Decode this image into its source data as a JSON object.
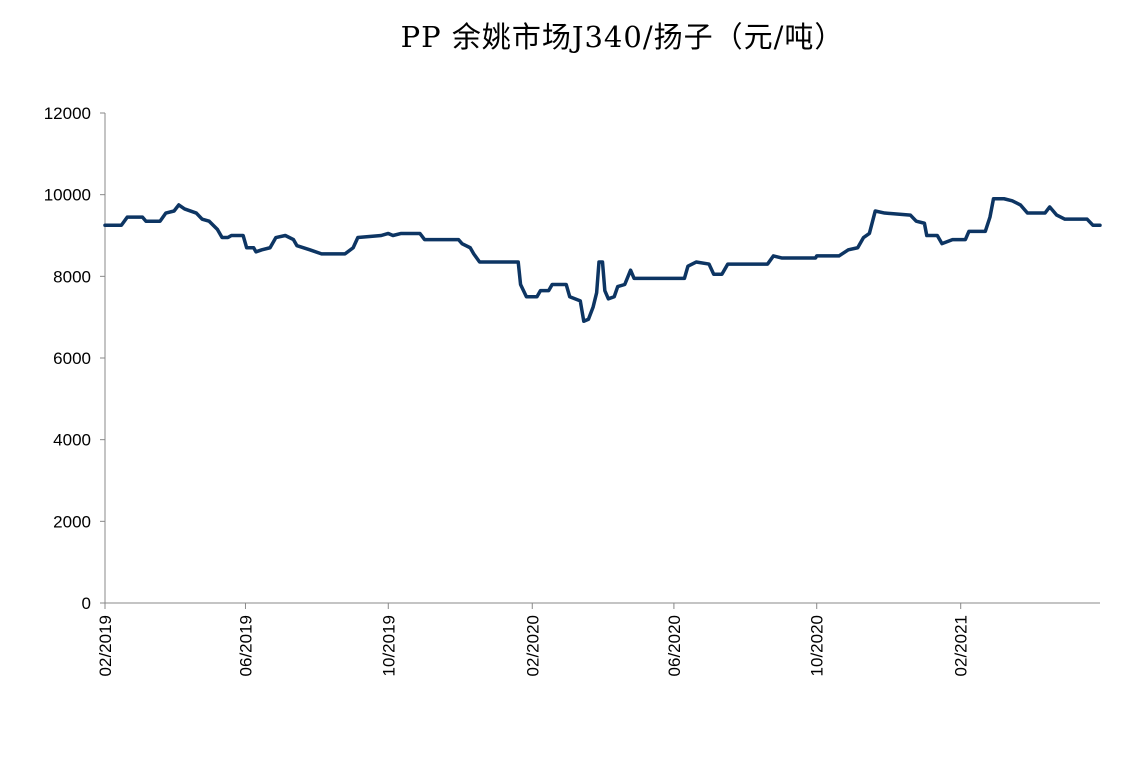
{
  "chart_data": {
    "type": "line",
    "title": "PP 余姚市场J340/扬子（元/吨）",
    "xlabel": "",
    "ylabel": "",
    "ylim": [
      0,
      12000
    ],
    "yticks": [
      "0",
      "2000",
      "4000",
      "6000",
      "8000",
      "10000",
      "12000"
    ],
    "xticks": [
      "02/2019",
      "06/2019",
      "10/2019",
      "02/2020",
      "06/2020",
      "10/2020",
      "02/2021"
    ],
    "x_range": [
      "2019-02-01",
      "2021-05-31"
    ],
    "grid": false,
    "series": [
      {
        "color": "#0d3563",
        "points": [
          [
            "2019-02-01",
            9250
          ],
          [
            "2019-02-15",
            9250
          ],
          [
            "2019-02-20",
            9450
          ],
          [
            "2019-03-05",
            9450
          ],
          [
            "2019-03-08",
            9350
          ],
          [
            "2019-03-20",
            9350
          ],
          [
            "2019-03-25",
            9550
          ],
          [
            "2019-04-01",
            9600
          ],
          [
            "2019-04-05",
            9750
          ],
          [
            "2019-04-10",
            9650
          ],
          [
            "2019-04-20",
            9550
          ],
          [
            "2019-04-25",
            9400
          ],
          [
            "2019-05-01",
            9350
          ],
          [
            "2019-05-08",
            9150
          ],
          [
            "2019-05-12",
            8950
          ],
          [
            "2019-05-17",
            8950
          ],
          [
            "2019-05-20",
            9000
          ],
          [
            "2019-05-30",
            9000
          ],
          [
            "2019-06-02",
            8700
          ],
          [
            "2019-06-08",
            8700
          ],
          [
            "2019-06-10",
            8600
          ],
          [
            "2019-06-15",
            8650
          ],
          [
            "2019-06-22",
            8700
          ],
          [
            "2019-06-27",
            8950
          ],
          [
            "2019-07-05",
            9000
          ],
          [
            "2019-07-12",
            8900
          ],
          [
            "2019-07-15",
            8750
          ],
          [
            "2019-07-26",
            8650
          ],
          [
            "2019-08-05",
            8550
          ],
          [
            "2019-08-25",
            8550
          ],
          [
            "2019-09-01",
            8700
          ],
          [
            "2019-09-05",
            8950
          ],
          [
            "2019-09-25",
            9000
          ],
          [
            "2019-10-01",
            9050
          ],
          [
            "2019-10-05",
            9000
          ],
          [
            "2019-10-12",
            9050
          ],
          [
            "2019-10-28",
            9050
          ],
          [
            "2019-11-01",
            8900
          ],
          [
            "2019-11-30",
            8900
          ],
          [
            "2019-12-03",
            8800
          ],
          [
            "2019-12-10",
            8700
          ],
          [
            "2019-12-13",
            8550
          ],
          [
            "2019-12-18",
            8350
          ],
          [
            "2020-01-20",
            8350
          ],
          [
            "2020-01-22",
            7800
          ],
          [
            "2020-01-27",
            7500
          ],
          [
            "2020-02-05",
            7500
          ],
          [
            "2020-02-08",
            7650
          ],
          [
            "2020-02-15",
            7650
          ],
          [
            "2020-02-18",
            7800
          ],
          [
            "2020-03-01",
            7800
          ],
          [
            "2020-03-04",
            7500
          ],
          [
            "2020-03-13",
            7400
          ],
          [
            "2020-03-16",
            6900
          ],
          [
            "2020-03-20",
            6950
          ],
          [
            "2020-03-24",
            7250
          ],
          [
            "2020-03-27",
            7600
          ],
          [
            "2020-03-29",
            8350
          ],
          [
            "2020-04-01",
            8350
          ],
          [
            "2020-04-03",
            7650
          ],
          [
            "2020-04-06",
            7450
          ],
          [
            "2020-04-11",
            7500
          ],
          [
            "2020-04-14",
            7750
          ],
          [
            "2020-04-20",
            7800
          ],
          [
            "2020-04-25",
            8150
          ],
          [
            "2020-04-28",
            7950
          ],
          [
            "2020-06-10",
            7950
          ],
          [
            "2020-06-13",
            8250
          ],
          [
            "2020-06-20",
            8350
          ],
          [
            "2020-07-01",
            8300
          ],
          [
            "2020-07-05",
            8050
          ],
          [
            "2020-07-12",
            8050
          ],
          [
            "2020-07-17",
            8300
          ],
          [
            "2020-08-20",
            8300
          ],
          [
            "2020-08-25",
            8500
          ],
          [
            "2020-09-01",
            8450
          ],
          [
            "2020-09-30",
            8450
          ],
          [
            "2020-10-01",
            8500
          ],
          [
            "2020-10-20",
            8500
          ],
          [
            "2020-10-28",
            8650
          ],
          [
            "2020-11-05",
            8700
          ],
          [
            "2020-11-10",
            8950
          ],
          [
            "2020-11-15",
            9050
          ],
          [
            "2020-11-20",
            9600
          ],
          [
            "2020-11-28",
            9550
          ],
          [
            "2020-12-20",
            9500
          ],
          [
            "2020-12-25",
            9350
          ],
          [
            "2021-01-01",
            9300
          ],
          [
            "2021-01-03",
            9000
          ],
          [
            "2021-01-12",
            9000
          ],
          [
            "2021-01-16",
            8800
          ],
          [
            "2021-01-25",
            8900
          ],
          [
            "2021-02-05",
            8900
          ],
          [
            "2021-02-08",
            9100
          ],
          [
            "2021-02-22",
            9100
          ],
          [
            "2021-02-26",
            9450
          ],
          [
            "2021-03-01",
            9900
          ],
          [
            "2021-03-10",
            9900
          ],
          [
            "2021-03-17",
            9850
          ],
          [
            "2021-03-24",
            9750
          ],
          [
            "2021-03-30",
            9550
          ],
          [
            "2021-04-14",
            9550
          ],
          [
            "2021-04-18",
            9700
          ],
          [
            "2021-04-24",
            9500
          ],
          [
            "2021-05-01",
            9400
          ],
          [
            "2021-05-20",
            9400
          ],
          [
            "2021-05-25",
            9250
          ],
          [
            "2021-05-31",
            9250
          ]
        ]
      }
    ]
  }
}
